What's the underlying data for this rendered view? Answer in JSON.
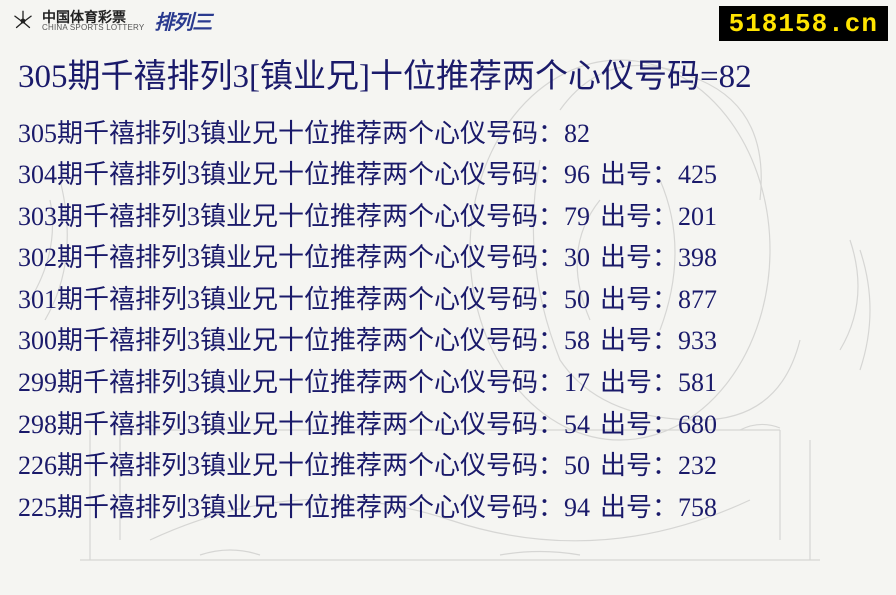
{
  "logo": {
    "cn": "中国体育彩票",
    "en": "CHINA SPORTS LOTTERY",
    "brand": "排列三"
  },
  "site_badge": "518158.cn",
  "headline": "305期千禧排列3[镇业兄]十位推荐两个心仪号码=82",
  "row_label_prefix": "期千禧排列3镇业兄十位推荐两个心仪号码：",
  "result_prefix": "出号：",
  "rows": [
    {
      "period": "305",
      "pick": "82",
      "result": ""
    },
    {
      "period": "304",
      "pick": "96",
      "result": "425"
    },
    {
      "period": "303",
      "pick": "79",
      "result": "201"
    },
    {
      "period": "302",
      "pick": "30",
      "result": "398"
    },
    {
      "period": "301",
      "pick": "50",
      "result": "877"
    },
    {
      "period": "300",
      "pick": "58",
      "result": "933"
    },
    {
      "period": "299",
      "pick": "17",
      "result": "581"
    },
    {
      "period": "298",
      "pick": "54",
      "result": "680"
    },
    {
      "period": "226",
      "pick": "50",
      "result": "232"
    },
    {
      "period": "225",
      "pick": "94",
      "result": "758"
    }
  ],
  "colors": {
    "text": "#1a1a6a",
    "badge_bg": "#000000",
    "badge_fg": "#ffe400",
    "bg": "#f5f5f2"
  }
}
